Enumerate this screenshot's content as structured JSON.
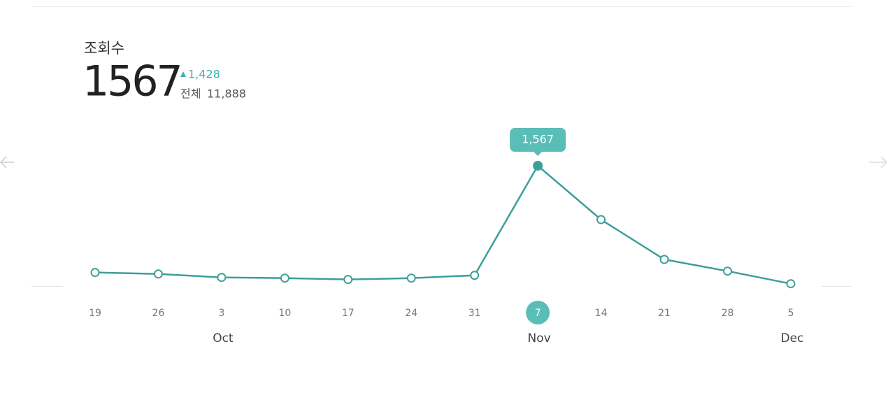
{
  "chart_data": {
    "type": "line",
    "title": "조회수",
    "current": "1567",
    "change": "1,428",
    "total_prefix": "전체",
    "total": "11,888",
    "categories": [
      "19",
      "26",
      "3",
      "10",
      "17",
      "24",
      "31",
      "7",
      "14",
      "21",
      "28",
      "5"
    ],
    "month_labels": [
      null,
      null,
      "Oct",
      null,
      null,
      null,
      null,
      "Nov",
      null,
      null,
      null,
      "Dec"
    ],
    "values": [
      176,
      157,
      112,
      103,
      85,
      103,
      139,
      1567,
      865,
      346,
      194,
      30
    ],
    "value_labels": [
      null,
      null,
      null,
      null,
      null,
      null,
      null,
      "1,567",
      null,
      null,
      null,
      null
    ],
    "color": "#3e9e9a"
  }
}
